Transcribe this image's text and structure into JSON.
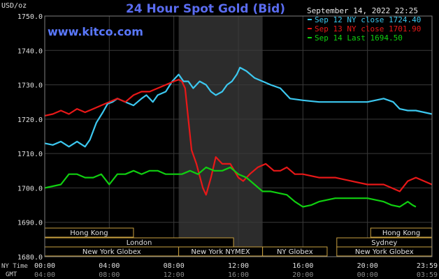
{
  "chart_data": {
    "type": "line",
    "title": "24 Hour Spot Gold (Bid)",
    "watermark": "www.kitco.com",
    "ylabel": "USD/oz",
    "timestamp": "September 14, 2022 22:25",
    "ylim": [
      1680,
      1750
    ],
    "yticks": [
      1680,
      1690,
      1700,
      1710,
      1720,
      1730,
      1740,
      1750
    ],
    "ytick_labels": [
      "1680.0",
      "1690.0",
      "1700.0",
      "1710.0",
      "1720.0",
      "1730.0",
      "1740.0",
      "1750.0"
    ],
    "xlim": [
      0,
      24
    ],
    "xticks": [
      0,
      4,
      8,
      12,
      16,
      20,
      24
    ],
    "xtick_labels_ny": [
      "00:00",
      "04:00",
      "08:00",
      "12:00",
      "16:00",
      "20:00",
      "23:59"
    ],
    "xtick_labels_gmt": [
      "04:00",
      "08:00",
      "12:00",
      "16:00",
      "20:00",
      "00:00",
      "03:59"
    ],
    "row_label_ny": "NY Time",
    "row_label_gmt": "GMT",
    "shaded_region": [
      8.3,
      13.5
    ],
    "grid": true,
    "legend_position": "top-right",
    "series": [
      {
        "name": "Sep 12 NY close 1724.40",
        "color": "#3cc8f0",
        "points": [
          [
            0,
            1713
          ],
          [
            0.5,
            1712.5
          ],
          [
            1,
            1713.5
          ],
          [
            1.5,
            1712
          ],
          [
            2,
            1713.5
          ],
          [
            2.5,
            1712
          ],
          [
            2.8,
            1714
          ],
          [
            3.2,
            1719
          ],
          [
            3.6,
            1722
          ],
          [
            3.9,
            1724.5
          ],
          [
            4.2,
            1725
          ],
          [
            4.5,
            1726
          ],
          [
            5,
            1725
          ],
          [
            5.5,
            1724
          ],
          [
            6,
            1726
          ],
          [
            6.3,
            1727
          ],
          [
            6.7,
            1725
          ],
          [
            7,
            1727
          ],
          [
            7.5,
            1728
          ],
          [
            7.9,
            1731
          ],
          [
            8.3,
            1733
          ],
          [
            8.6,
            1731
          ],
          [
            8.9,
            1731
          ],
          [
            9.2,
            1729
          ],
          [
            9.6,
            1731
          ],
          [
            10,
            1730
          ],
          [
            10.3,
            1728
          ],
          [
            10.6,
            1727
          ],
          [
            11,
            1728
          ],
          [
            11.3,
            1730
          ],
          [
            11.6,
            1731
          ],
          [
            11.9,
            1733
          ],
          [
            12.1,
            1735
          ],
          [
            12.5,
            1734
          ],
          [
            13,
            1732
          ],
          [
            13.5,
            1731
          ],
          [
            14,
            1730
          ],
          [
            14.6,
            1729
          ],
          [
            15.2,
            1726
          ],
          [
            16,
            1725.5
          ],
          [
            17,
            1725
          ],
          [
            18,
            1725
          ],
          [
            19,
            1725
          ],
          [
            20,
            1725
          ],
          [
            21,
            1726
          ],
          [
            21.6,
            1725
          ],
          [
            22,
            1723
          ],
          [
            22.5,
            1722.5
          ],
          [
            23,
            1722.5
          ],
          [
            23.5,
            1722
          ],
          [
            23.99,
            1721.5
          ]
        ]
      },
      {
        "name": "Sep 13 NY close 1701.90",
        "color": "#e81818",
        "points": [
          [
            0,
            1721
          ],
          [
            0.5,
            1721.5
          ],
          [
            1,
            1722.5
          ],
          [
            1.5,
            1721.5
          ],
          [
            2,
            1723
          ],
          [
            2.5,
            1722
          ],
          [
            3,
            1723
          ],
          [
            3.5,
            1724
          ],
          [
            4,
            1725
          ],
          [
            4.5,
            1726
          ],
          [
            5,
            1725
          ],
          [
            5.5,
            1727
          ],
          [
            6,
            1728
          ],
          [
            6.5,
            1728
          ],
          [
            7,
            1729
          ],
          [
            7.5,
            1730
          ],
          [
            8,
            1731
          ],
          [
            8.3,
            1731.5
          ],
          [
            8.5,
            1731
          ],
          [
            8.7,
            1729
          ],
          [
            8.9,
            1720
          ],
          [
            9.1,
            1711
          ],
          [
            9.4,
            1707
          ],
          [
            9.8,
            1700
          ],
          [
            10,
            1698
          ],
          [
            10.3,
            1703
          ],
          [
            10.6,
            1709
          ],
          [
            11,
            1707
          ],
          [
            11.5,
            1707
          ],
          [
            12,
            1703
          ],
          [
            12.3,
            1702
          ],
          [
            12.7,
            1704
          ],
          [
            13.2,
            1706
          ],
          [
            13.7,
            1707
          ],
          [
            14.2,
            1705
          ],
          [
            14.6,
            1705
          ],
          [
            15,
            1706
          ],
          [
            15.5,
            1704
          ],
          [
            16,
            1704
          ],
          [
            17,
            1703
          ],
          [
            18,
            1703
          ],
          [
            19,
            1702
          ],
          [
            20,
            1701
          ],
          [
            21,
            1701
          ],
          [
            21.5,
            1700
          ],
          [
            22,
            1699
          ],
          [
            22.5,
            1702
          ],
          [
            23,
            1703
          ],
          [
            23.5,
            1702
          ],
          [
            23.99,
            1701
          ]
        ]
      },
      {
        "name": "Sep 14 Last 1694.50",
        "color": "#10d010",
        "points": [
          [
            0,
            1700
          ],
          [
            0.5,
            1700.5
          ],
          [
            1,
            1701
          ],
          [
            1.5,
            1704
          ],
          [
            2,
            1704
          ],
          [
            2.5,
            1703
          ],
          [
            3,
            1703
          ],
          [
            3.5,
            1704
          ],
          [
            4,
            1701
          ],
          [
            4.5,
            1704
          ],
          [
            5,
            1704
          ],
          [
            5.5,
            1705
          ],
          [
            6,
            1704
          ],
          [
            6.5,
            1705
          ],
          [
            7,
            1705
          ],
          [
            7.5,
            1704
          ],
          [
            8,
            1704
          ],
          [
            8.5,
            1704
          ],
          [
            9,
            1705
          ],
          [
            9.5,
            1704
          ],
          [
            10,
            1706
          ],
          [
            10.5,
            1705
          ],
          [
            11,
            1705
          ],
          [
            11.5,
            1706
          ],
          [
            12,
            1704
          ],
          [
            12.5,
            1703
          ],
          [
            13,
            1701
          ],
          [
            13.5,
            1699
          ],
          [
            14,
            1699
          ],
          [
            15,
            1698
          ],
          [
            15.5,
            1696
          ],
          [
            16,
            1694.5
          ],
          [
            16.5,
            1695
          ],
          [
            17,
            1696
          ],
          [
            18,
            1697
          ],
          [
            19,
            1697
          ],
          [
            20,
            1697
          ],
          [
            21,
            1696
          ],
          [
            21.5,
            1695
          ],
          [
            22,
            1694.5
          ],
          [
            22.5,
            1696
          ],
          [
            22.8,
            1695
          ],
          [
            23,
            1694.5
          ]
        ]
      }
    ],
    "sessions": [
      {
        "label": "Hong Kong",
        "start": 0,
        "end": 5.5,
        "row": 0
      },
      {
        "label": "Hong Kong",
        "start": 20.2,
        "end": 23.99,
        "row": 0
      },
      {
        "label": "London",
        "start": 0,
        "end": 11.7,
        "row": 1
      },
      {
        "label": "Sydney",
        "start": 18.1,
        "end": 23.99,
        "row": 1
      },
      {
        "label": "New York Globex",
        "start": 0,
        "end": 8.3,
        "row": 2
      },
      {
        "label": "New York NYMEX",
        "start": 8.3,
        "end": 13.5,
        "row": 2
      },
      {
        "label": "NY Globex",
        "start": 13.5,
        "end": 17.5,
        "row": 2
      },
      {
        "label": "New York Globex",
        "start": 18.1,
        "end": 23.99,
        "row": 2
      }
    ]
  }
}
